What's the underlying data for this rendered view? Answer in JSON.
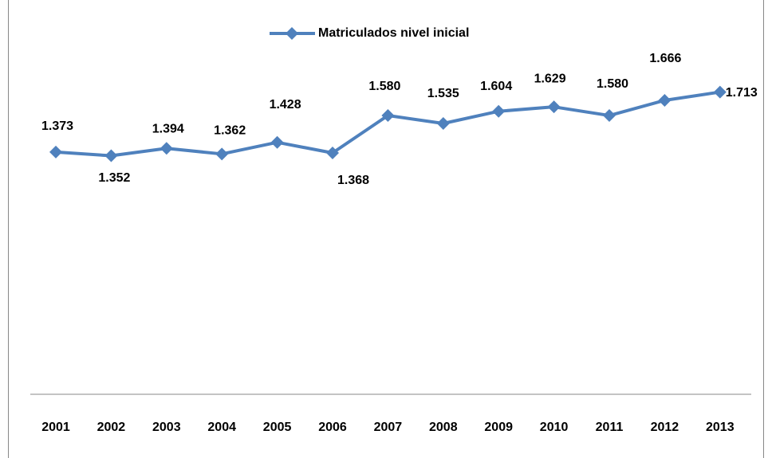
{
  "chart_data": {
    "type": "line",
    "categories": [
      "2001",
      "2002",
      "2003",
      "2004",
      "2005",
      "2006",
      "2007",
      "2008",
      "2009",
      "2010",
      "2011",
      "2012",
      "2013"
    ],
    "series": [
      {
        "name": "Matriculados nivel inicial",
        "color": "#4f81bd",
        "values": [
          1373,
          1352,
          1394,
          1362,
          1428,
          1368,
          1580,
          1535,
          1604,
          1629,
          1580,
          1666,
          1713
        ],
        "value_labels": [
          "1.373",
          "1.352",
          "1.394",
          "1.362",
          "1.428",
          "1.368",
          "1.580",
          "1.535",
          "1.604",
          "1.629",
          "1.580",
          "1.666",
          "1.713"
        ]
      }
    ],
    "ylim": [
      0,
      2000
    ],
    "legend": "top"
  }
}
